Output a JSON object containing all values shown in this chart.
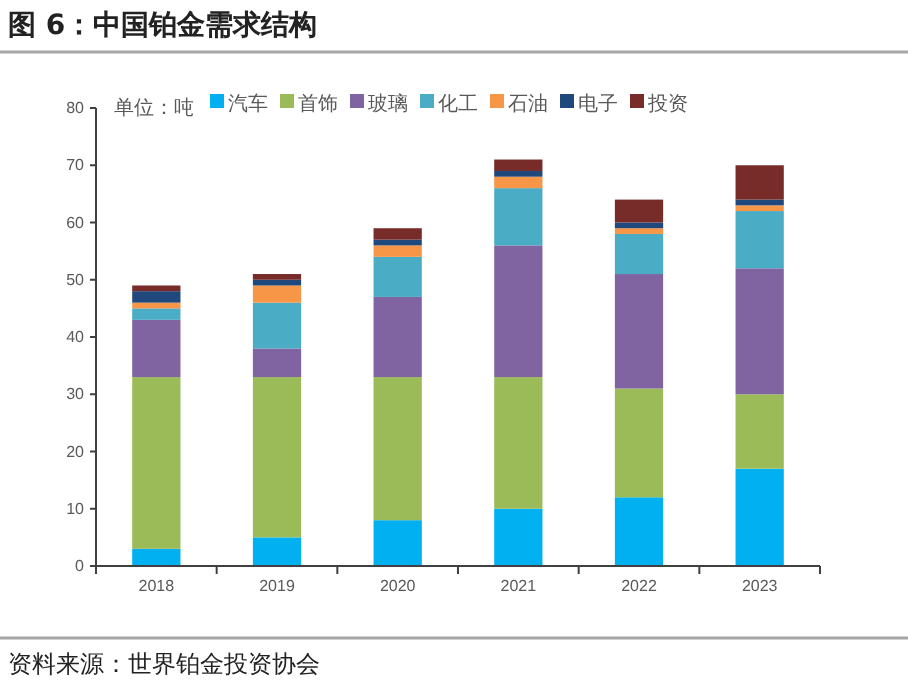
{
  "chart_data": {
    "type": "bar",
    "stacked": true,
    "title": "图 6：中国铂金需求结构",
    "categories": [
      "2018",
      "2019",
      "2020",
      "2021",
      "2022",
      "2023"
    ],
    "series": [
      {
        "name": "汽车",
        "color": "#00b0f0",
        "values": [
          3,
          5,
          8,
          10,
          12,
          17
        ]
      },
      {
        "name": "首饰",
        "color": "#9bbb59",
        "values": [
          30,
          28,
          25,
          23,
          19,
          13
        ]
      },
      {
        "name": "玻璃",
        "color": "#8064a2",
        "values": [
          10,
          5,
          14,
          23,
          20,
          22
        ]
      },
      {
        "name": "化工",
        "color": "#4bacc6",
        "values": [
          2,
          8,
          7,
          10,
          7,
          10
        ]
      },
      {
        "name": "石油",
        "color": "#f79646",
        "values": [
          1,
          3,
          2,
          2,
          1,
          1
        ]
      },
      {
        "name": "电子",
        "color": "#1f497d",
        "values": [
          2,
          1,
          1,
          1,
          1,
          1
        ]
      },
      {
        "name": "投资",
        "color": "#772c2a",
        "values": [
          1,
          1,
          2,
          2,
          4,
          6
        ]
      }
    ],
    "ylim": [
      0,
      80
    ],
    "yticks": [
      0,
      10,
      20,
      30,
      40,
      50,
      60,
      70,
      80
    ],
    "legend": "top",
    "grid": false,
    "annotations": [
      "单位：吨",
      "资料来源：世界铂金投资协会"
    ]
  }
}
